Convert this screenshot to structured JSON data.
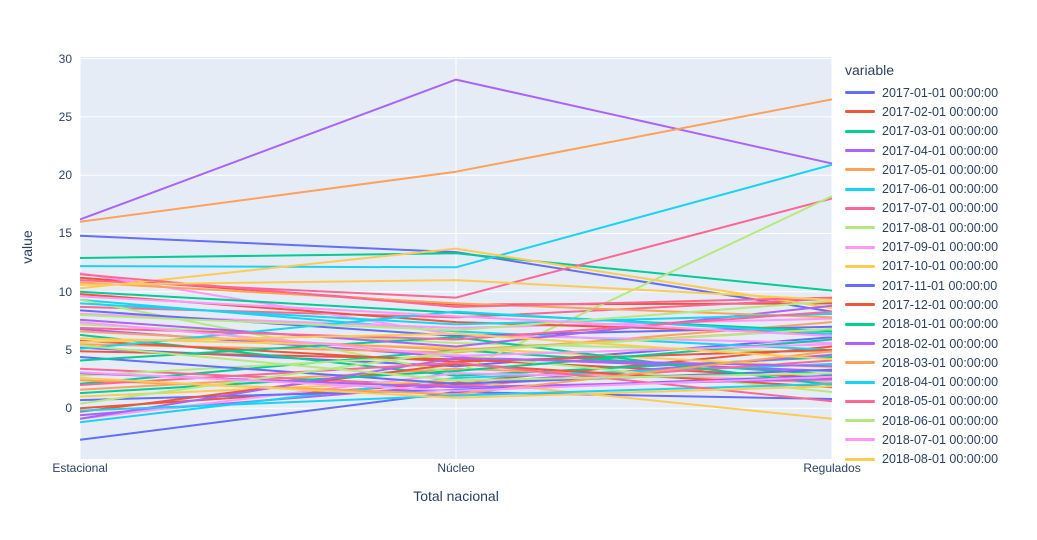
{
  "chart_data": {
    "type": "line",
    "title": "",
    "xlabel": "Total nacional",
    "ylabel": "value",
    "legend_title": "variable",
    "categories": [
      "Estacional",
      "Núcleo",
      "Regulados"
    ],
    "yticks": [
      0,
      5,
      10,
      15,
      20,
      25,
      30
    ],
    "ylim": [
      -4.3,
      30.1
    ],
    "grid": true,
    "legend_position": "right",
    "plot_bg": "#E5ECF6",
    "grid_color": "#FFFFFF",
    "text_color": "#2a3f5f",
    "series": [
      {
        "name": "2017-01-01 00:00:00",
        "color": "#636EFA",
        "lines": [
          [
            14.8,
            13.4,
            8.3
          ],
          [
            5.2,
            3.6,
            6.1
          ],
          [
            -2.7,
            1.4,
            0.8
          ]
        ]
      },
      {
        "name": "2017-02-01 00:00:00",
        "color": "#EF553B",
        "lines": [
          [
            11.2,
            8.9,
            9.0
          ],
          [
            4.9,
            4.2,
            2.6
          ],
          [
            0.0,
            2.2,
            5.3
          ]
        ]
      },
      {
        "name": "2017-03-01 00:00:00",
        "color": "#00CC96",
        "lines": [
          [
            12.9,
            13.3,
            10.1
          ],
          [
            6.3,
            2.8,
            4.4
          ],
          [
            2.1,
            5.0,
            2.9
          ]
        ]
      },
      {
        "name": "2017-04-01 00:00:00",
        "color": "#AB63FA",
        "lines": [
          [
            16.2,
            28.2,
            21.0
          ],
          [
            6.8,
            4.4,
            3.2
          ],
          [
            -0.6,
            2.0,
            4.6
          ]
        ]
      },
      {
        "name": "2017-05-01 00:00:00",
        "color": "#FFA15A",
        "lines": [
          [
            16.0,
            20.3,
            26.5
          ],
          [
            5.5,
            4.8,
            7.4
          ],
          [
            1.6,
            3.4,
            2.2
          ]
        ]
      },
      {
        "name": "2017-06-01 00:00:00",
        "color": "#19D3F3",
        "lines": [
          [
            12.2,
            12.1,
            20.9
          ],
          [
            9.3,
            6.6,
            5.0
          ],
          [
            -1.2,
            2.6,
            3.8
          ]
        ]
      },
      {
        "name": "2017-07-01 00:00:00",
        "color": "#FF6692",
        "lines": [
          [
            11.0,
            9.5,
            18.0
          ],
          [
            8.7,
            7.8,
            9.4
          ],
          [
            3.4,
            1.9,
            4.1
          ]
        ]
      },
      {
        "name": "2017-08-01 00:00:00",
        "color": "#B6E880",
        "lines": [
          [
            9.3,
            3.0,
            18.2
          ],
          [
            7.2,
            5.6,
            4.8
          ],
          [
            2.8,
            4.6,
            1.4
          ]
        ]
      },
      {
        "name": "2017-09-01 00:00:00",
        "color": "#FF97FF",
        "lines": [
          [
            11.6,
            6.3,
            5.6
          ],
          [
            8.1,
            6.9,
            7.7
          ],
          [
            -0.9,
            3.0,
            2.4
          ]
        ]
      },
      {
        "name": "2017-10-01 00:00:00",
        "color": "#FECB52",
        "lines": [
          [
            10.3,
            13.7,
            8.6
          ],
          [
            6.0,
            5.2,
            3.5
          ],
          [
            1.0,
            2.4,
            -0.9
          ]
        ]
      },
      {
        "name": "2017-11-01 00:00:00",
        "color": "#636EFA",
        "lines": [
          [
            8.4,
            6.2,
            7.0
          ],
          [
            4.4,
            2.1,
            3.3
          ],
          [
            0.7,
            1.6,
            2.8
          ]
        ]
      },
      {
        "name": "2017-12-01 00:00:00",
        "color": "#EF553B",
        "lines": [
          [
            9.8,
            7.4,
            6.4
          ],
          [
            5.8,
            4.0,
            5.0
          ],
          [
            -0.3,
            3.8,
            1.8
          ]
        ]
      },
      {
        "name": "2018-01-01 00:00:00",
        "color": "#00CC96",
        "lines": [
          [
            10.0,
            8.2,
            6.6
          ],
          [
            4.1,
            6.1,
            2.0
          ],
          [
            1.3,
            3.2,
            5.9
          ]
        ]
      },
      {
        "name": "2018-02-01 00:00:00",
        "color": "#AB63FA",
        "lines": [
          [
            7.6,
            5.3,
            8.8
          ],
          [
            3.0,
            1.8,
            2.5
          ],
          [
            -0.9,
            4.3,
            3.6
          ]
        ]
      },
      {
        "name": "2018-03-01 00:00:00",
        "color": "#FFA15A",
        "lines": [
          [
            10.8,
            9.0,
            7.8
          ],
          [
            6.6,
            5.0,
            6.8
          ],
          [
            2.4,
            1.2,
            4.9
          ]
        ]
      },
      {
        "name": "2018-04-01 00:00:00",
        "color": "#19D3F3",
        "lines": [
          [
            9.0,
            7.2,
            8.1
          ],
          [
            5.1,
            8.3,
            6.4
          ],
          [
            -0.2,
            1.1,
            2.1
          ]
        ]
      },
      {
        "name": "2018-05-01 00:00:00",
        "color": "#FF6692",
        "lines": [
          [
            11.5,
            8.7,
            9.5
          ],
          [
            6.9,
            5.9,
            8.3
          ],
          [
            2.0,
            3.9,
            0.6
          ]
        ]
      },
      {
        "name": "2018-06-01 00:00:00",
        "color": "#B6E880",
        "lines": [
          [
            8.0,
            6.7,
            9.2
          ],
          [
            5.4,
            2.4,
            3.0
          ],
          [
            0.4,
            4.9,
            6.8
          ]
        ]
      },
      {
        "name": "2018-07-01 00:00:00",
        "color": "#FF97FF",
        "lines": [
          [
            9.6,
            7.9,
            6.2
          ],
          [
            7.4,
            4.5,
            5.5
          ],
          [
            3.1,
            1.5,
            2.7
          ]
        ]
      },
      {
        "name": "2018-08-01 00:00:00",
        "color": "#FECB52",
        "lines": [
          [
            10.6,
            11.0,
            9.3
          ],
          [
            5.7,
            6.4,
            4.2
          ],
          [
            2.6,
            0.9,
            1.9
          ]
        ]
      }
    ]
  }
}
